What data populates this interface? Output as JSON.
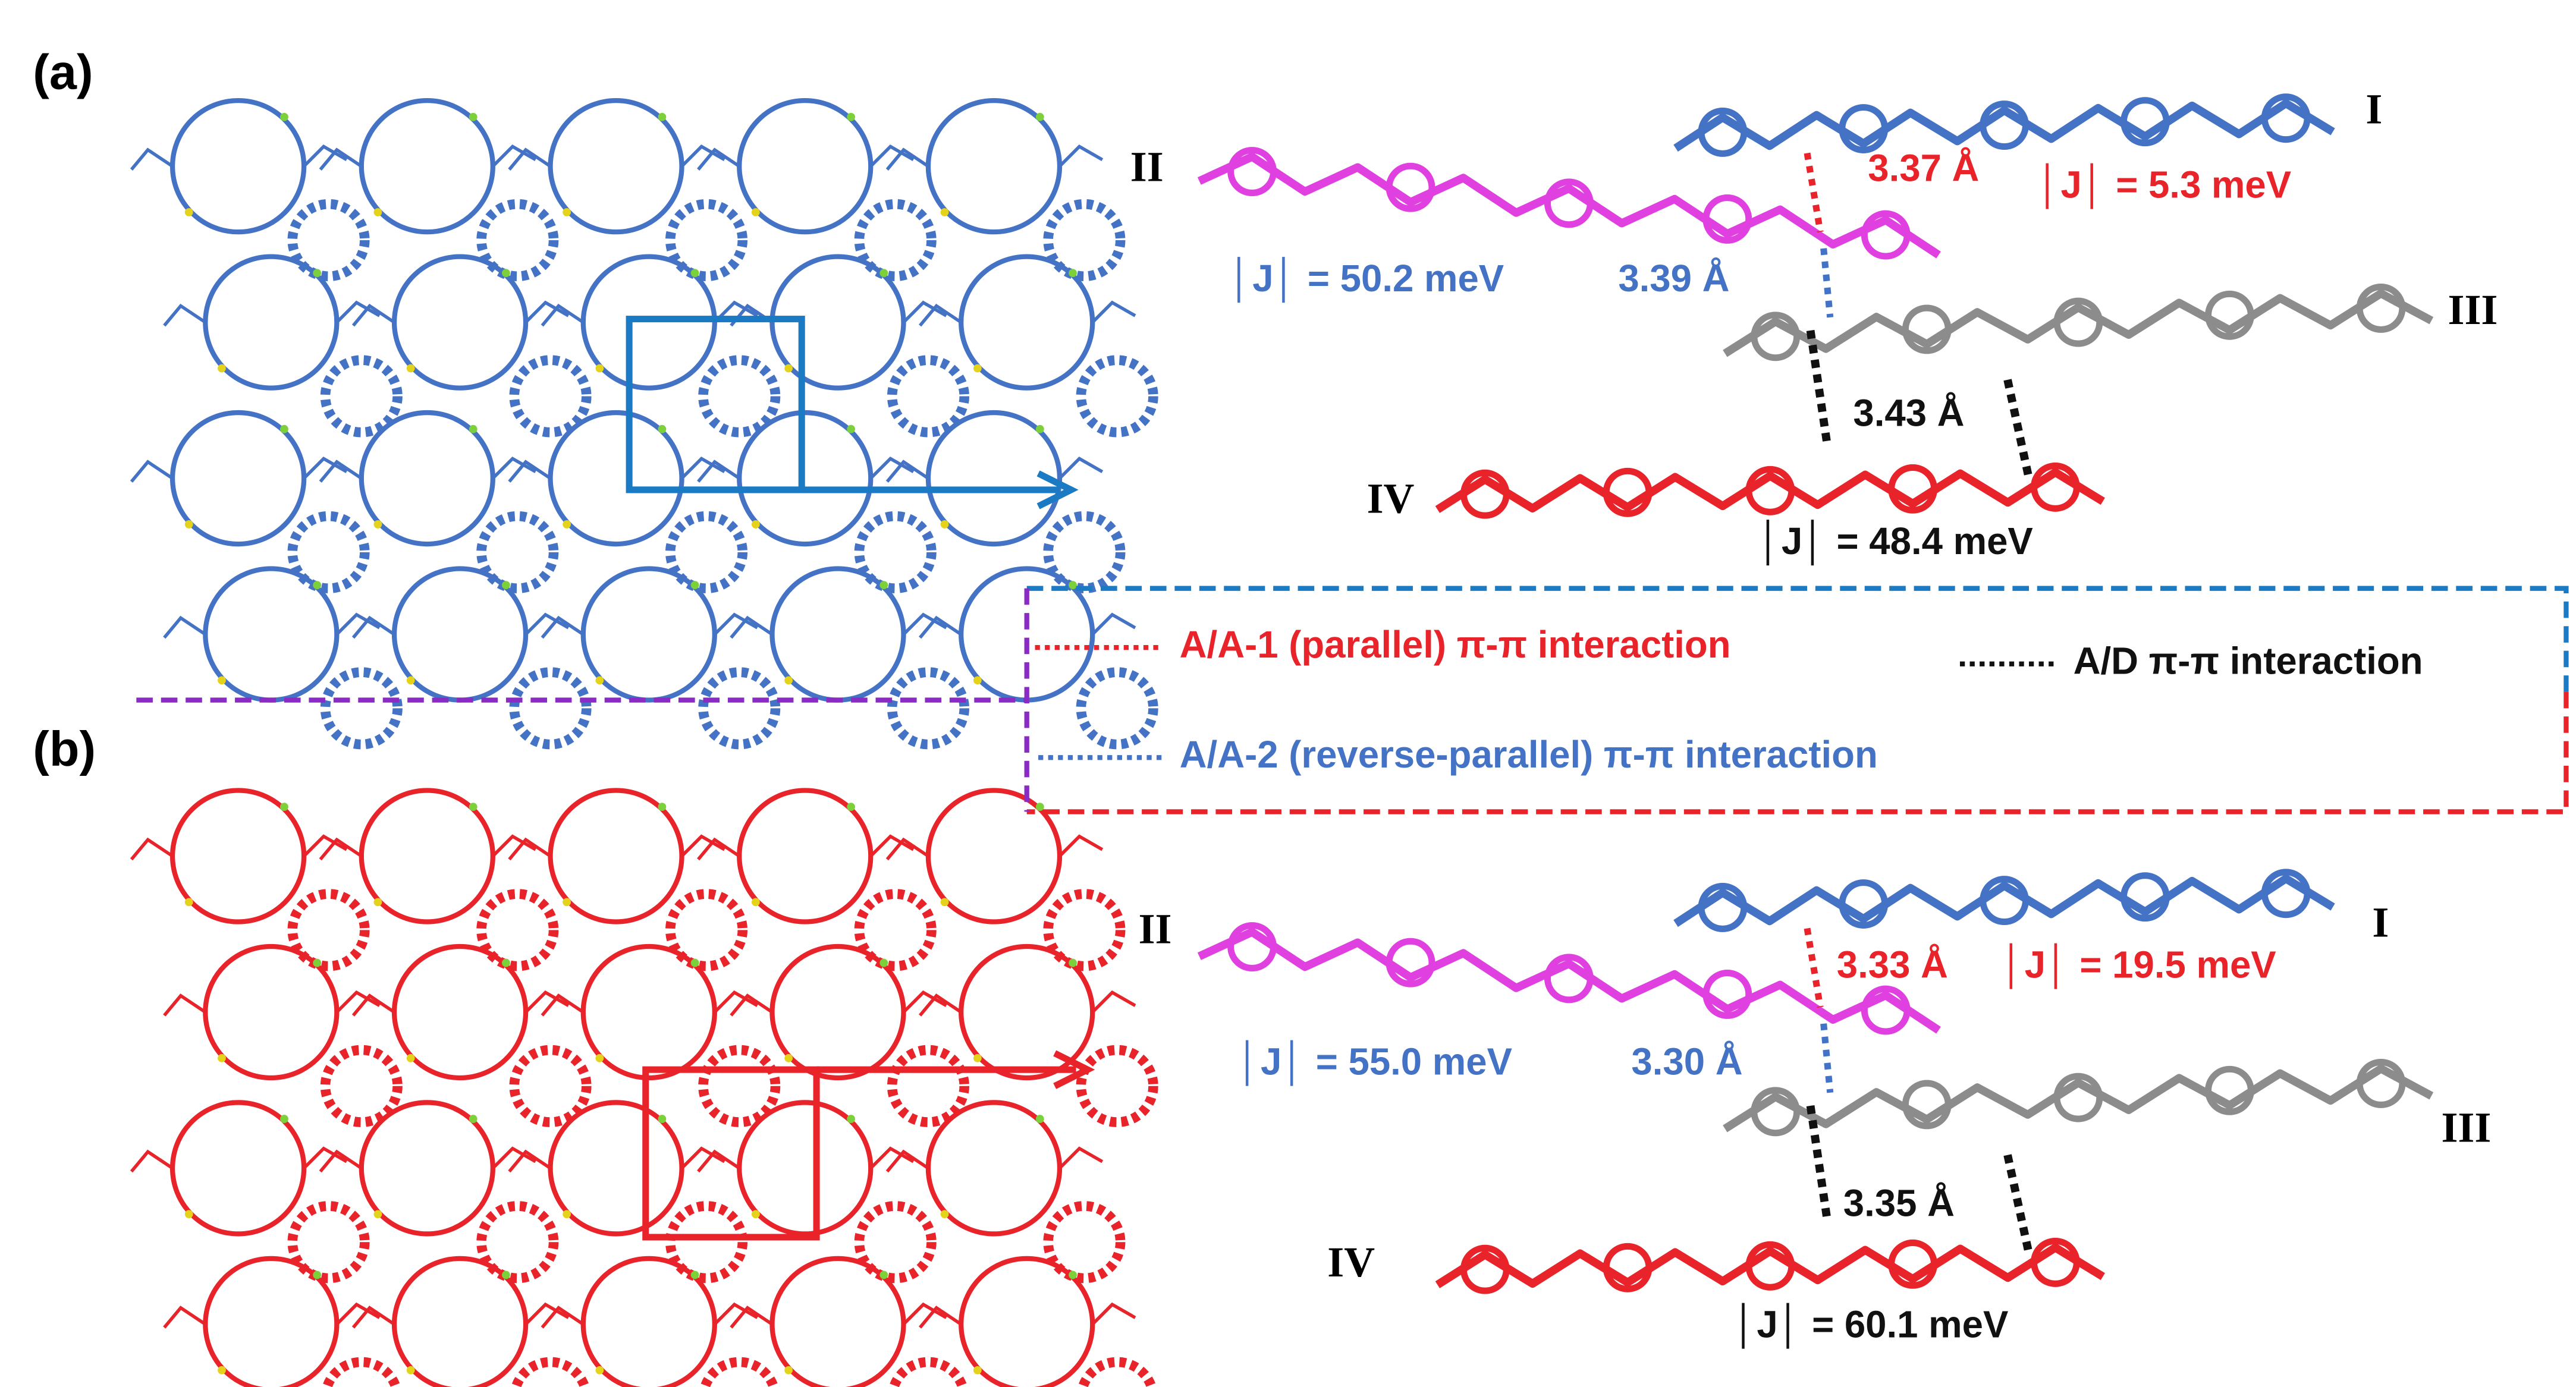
{
  "panels": [
    {
      "label": "(a)",
      "molecules": [
        "I",
        "II",
        "III",
        "IV"
      ],
      "distances": [
        "3.37 Å",
        "3.39 Å",
        "3.43 Å"
      ],
      "couplings": [
        "│J│ = 5.3 meV",
        "│J│ = 50.2 meV",
        "│J│ = 48.4 meV"
      ]
    },
    {
      "label": "(b)",
      "molecules": [
        "I",
        "II",
        "III",
        "IV"
      ],
      "distances": [
        "3.33 Å",
        "3.30 Å",
        "3.35 Å"
      ],
      "couplings": [
        "│J│ = 19.5 meV",
        "│J│ = 55.0 meV",
        "│J│ = 60.1 meV"
      ]
    }
  ],
  "legend": [
    "A/A-1 (parallel) π-π interaction",
    "A/A-2 (reverse-parallel) π-π interaction",
    "A/D π-π interaction"
  ]
}
